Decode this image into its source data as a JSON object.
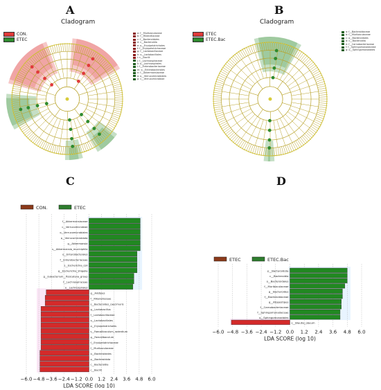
{
  "panels": {
    "A": {
      "letter": "A",
      "title": "Cladogram",
      "legend": [
        {
          "label": "CON.",
          "color": "#e03a3a"
        },
        {
          "label": "ETEC",
          "color": "#2e8b2e"
        }
      ],
      "taxa": [
        {
          "label": "a: f__Muribaculaceae",
          "group": "CON."
        },
        {
          "label": "b: f__Rikenellaceae",
          "group": "CON."
        },
        {
          "label": "c: f__Bacteroidales",
          "group": "CON."
        },
        {
          "label": "d: c__Bacteroidia",
          "group": "CON."
        },
        {
          "label": "e: o__Erysipelotrichales",
          "group": "CON."
        },
        {
          "label": "f: f__Erysipelotrichaceae",
          "group": "CON."
        },
        {
          "label": "g: f__Lactobacillaceae",
          "group": "CON."
        },
        {
          "label": "h: o__Lactobacillales",
          "group": "CON."
        },
        {
          "label": "i: c__Bacilli",
          "group": "CON."
        },
        {
          "label": "j: f__Lachnospiraceae",
          "group": "ETEC"
        },
        {
          "label": "k: o__Lachnospirales",
          "group": "ETEC"
        },
        {
          "label": "l: f__Enterobacteriaceae",
          "group": "ETEC"
        },
        {
          "label": "m: o__Enterobacterales",
          "group": "ETEC"
        },
        {
          "label": "n: f__Akkermansiaceae",
          "group": "ETEC"
        },
        {
          "label": "o: o__Verrucomicrobiales",
          "group": "ETEC"
        },
        {
          "label": "p: c__Verrucomicrobiae",
          "group": "ETEC"
        }
      ]
    },
    "B": {
      "letter": "B",
      "title": "Cladogram",
      "legend": [
        {
          "label": "ETEC",
          "color": "#e03a3a"
        },
        {
          "label": "ETEC.Bac",
          "color": "#2e8b2e"
        }
      ],
      "taxa": [
        {
          "label": "a: f__Bacteroidaceae",
          "group": "ETEC.Bac"
        },
        {
          "label": "b: f__Muribaculaceae",
          "group": "ETEC.Bac"
        },
        {
          "label": "c: o__Bacteroidales",
          "group": "ETEC.Bac"
        },
        {
          "label": "d: c__Bacteroidia",
          "group": "ETEC.Bac"
        },
        {
          "label": "e: f__Carnobacteriaceae",
          "group": "ETEC.Bac"
        },
        {
          "label": "f: f__Sphingomonadaceae",
          "group": "ETEC.Bac"
        },
        {
          "label": "g: o__Sphingomonadales",
          "group": "ETEC.Bac"
        }
      ]
    },
    "C": {
      "letter": "C"
    },
    "D": {
      "letter": "D"
    }
  },
  "colors": {
    "red": "#e03a3a",
    "green": "#2e8b2e",
    "bar_red": "#d42a2a",
    "bar_green": "#218821",
    "tree": "#b8a228",
    "node": "#d8cc3c"
  },
  "chart_data": [
    {
      "type": "bar",
      "orientation": "horizontal",
      "panel": "C",
      "xlabel": "LDA SCORE (log 10)",
      "xlim": [
        -6.0,
        6.0
      ],
      "xticks": [
        "−6.0",
        "−4.8",
        "−3.6",
        "−2.4",
        "−1.2",
        "0.0",
        "1.2",
        "2.4",
        "3.6",
        "4.8",
        "6.0"
      ],
      "legend": [
        {
          "name": "CON.",
          "color": "#e03a3a"
        },
        {
          "name": "ETEC",
          "color": "#2e8b2e"
        }
      ],
      "bars": [
        {
          "label": "f__Akkermansiaceae",
          "value": 4.9,
          "group": "ETEC"
        },
        {
          "label": "c__Verrucomicrobiae",
          "value": 4.9,
          "group": "ETEC"
        },
        {
          "label": "o__Verrucomicrobiales",
          "value": 4.9,
          "group": "ETEC"
        },
        {
          "label": "p__Verrucomicrobiota",
          "value": 4.9,
          "group": "ETEC"
        },
        {
          "label": "g__Akkermansia",
          "value": 4.9,
          "group": "ETEC"
        },
        {
          "label": "s__Akkermansia_muciniphila",
          "value": 4.9,
          "group": "ETEC"
        },
        {
          "label": "o__Enterobacterales",
          "value": 4.6,
          "group": "ETEC"
        },
        {
          "label": "f__Enterobacteriaceae",
          "value": 4.6,
          "group": "ETEC"
        },
        {
          "label": "s__Escherichia_coli",
          "value": 4.6,
          "group": "ETEC"
        },
        {
          "label": "g__Escherichia_Shigella",
          "value": 4.6,
          "group": "ETEC"
        },
        {
          "label": "g__Eubacterium__fissicatena_group",
          "value": 4.3,
          "group": "ETEC"
        },
        {
          "label": "f__Lachnospiraceae",
          "value": 4.3,
          "group": "ETEC"
        },
        {
          "label": "o__Lachnospirales",
          "value": 4.2,
          "group": "ETEC"
        },
        {
          "label": "g__Alistipes",
          "value": -4.1,
          "group": "CON."
        },
        {
          "label": "f__Rikenellaceae",
          "value": -4.2,
          "group": "CON."
        },
        {
          "label": "s__Bacteroides_caecimuris",
          "value": -4.2,
          "group": "CON."
        },
        {
          "label": "g__Lactobacillus",
          "value": -4.6,
          "group": "CON."
        },
        {
          "label": "f__Lactobacillaceae",
          "value": -4.6,
          "group": "CON."
        },
        {
          "label": "o__Lactobacillales",
          "value": -4.6,
          "group": "CON."
        },
        {
          "label": "o__Erysipelotrichales",
          "value": -4.6,
          "group": "CON."
        },
        {
          "label": "s__Faecalibaculum_rodentium",
          "value": -4.6,
          "group": "CON."
        },
        {
          "label": "g__Faecalibaculum",
          "value": -4.6,
          "group": "CON."
        },
        {
          "label": "f__Erysipelotrichaceae",
          "value": -4.6,
          "group": "CON."
        },
        {
          "label": "f__Muribaculaceae",
          "value": -4.6,
          "group": "CON."
        },
        {
          "label": "o__Bacteroidales",
          "value": -4.7,
          "group": "CON."
        },
        {
          "label": "p__Bacteroidota",
          "value": -4.7,
          "group": "CON."
        },
        {
          "label": "c__Bacteroidia",
          "value": -4.7,
          "group": "CON."
        },
        {
          "label": "c__Bacilli",
          "value": -4.7,
          "group": "CON."
        }
      ]
    },
    {
      "type": "bar",
      "orientation": "horizontal",
      "panel": "D",
      "xlabel": "LDA SCORE (log 10)",
      "xlim": [
        -6.0,
        6.0
      ],
      "xticks": [
        "−6.0",
        "−4.8",
        "−3.6",
        "−2.4",
        "−1.2",
        "0.0",
        "1.2",
        "2.4",
        "3.6",
        "4.8",
        "6.0"
      ],
      "legend": [
        {
          "name": "ETEC",
          "color": "#e03a3a"
        },
        {
          "name": "ETEC.Bac",
          "color": "#2e8b2e"
        }
      ],
      "bars": [
        {
          "label": "p__Bacteroidota",
          "value": 4.8,
          "group": "ETEC.Bac"
        },
        {
          "label": "c__Bacteroidia",
          "value": 4.8,
          "group": "ETEC.Bac"
        },
        {
          "label": "o__Bacteroidales",
          "value": 4.8,
          "group": "ETEC.Bac"
        },
        {
          "label": "f__Muribaculaceae",
          "value": 4.6,
          "group": "ETEC.Bac"
        },
        {
          "label": "g__Bacteroides",
          "value": 4.4,
          "group": "ETEC.Bac"
        },
        {
          "label": "f__Bacteroidaceae",
          "value": 4.4,
          "group": "ETEC.Bac"
        },
        {
          "label": "g__Atopostipes",
          "value": 4.3,
          "group": "ETEC.Bac"
        },
        {
          "label": "f__Carnobacteriaceae",
          "value": 4.3,
          "group": "ETEC.Bac"
        },
        {
          "label": "f__Sphingomonadaceae",
          "value": 4.2,
          "group": "ETEC.Bac"
        },
        {
          "label": "o__Sphingomonadales",
          "value": 4.2,
          "group": "ETEC.Bac"
        },
        {
          "label": "s__Blautia_obeum",
          "value": -4.9,
          "group": "ETEC"
        }
      ]
    }
  ]
}
